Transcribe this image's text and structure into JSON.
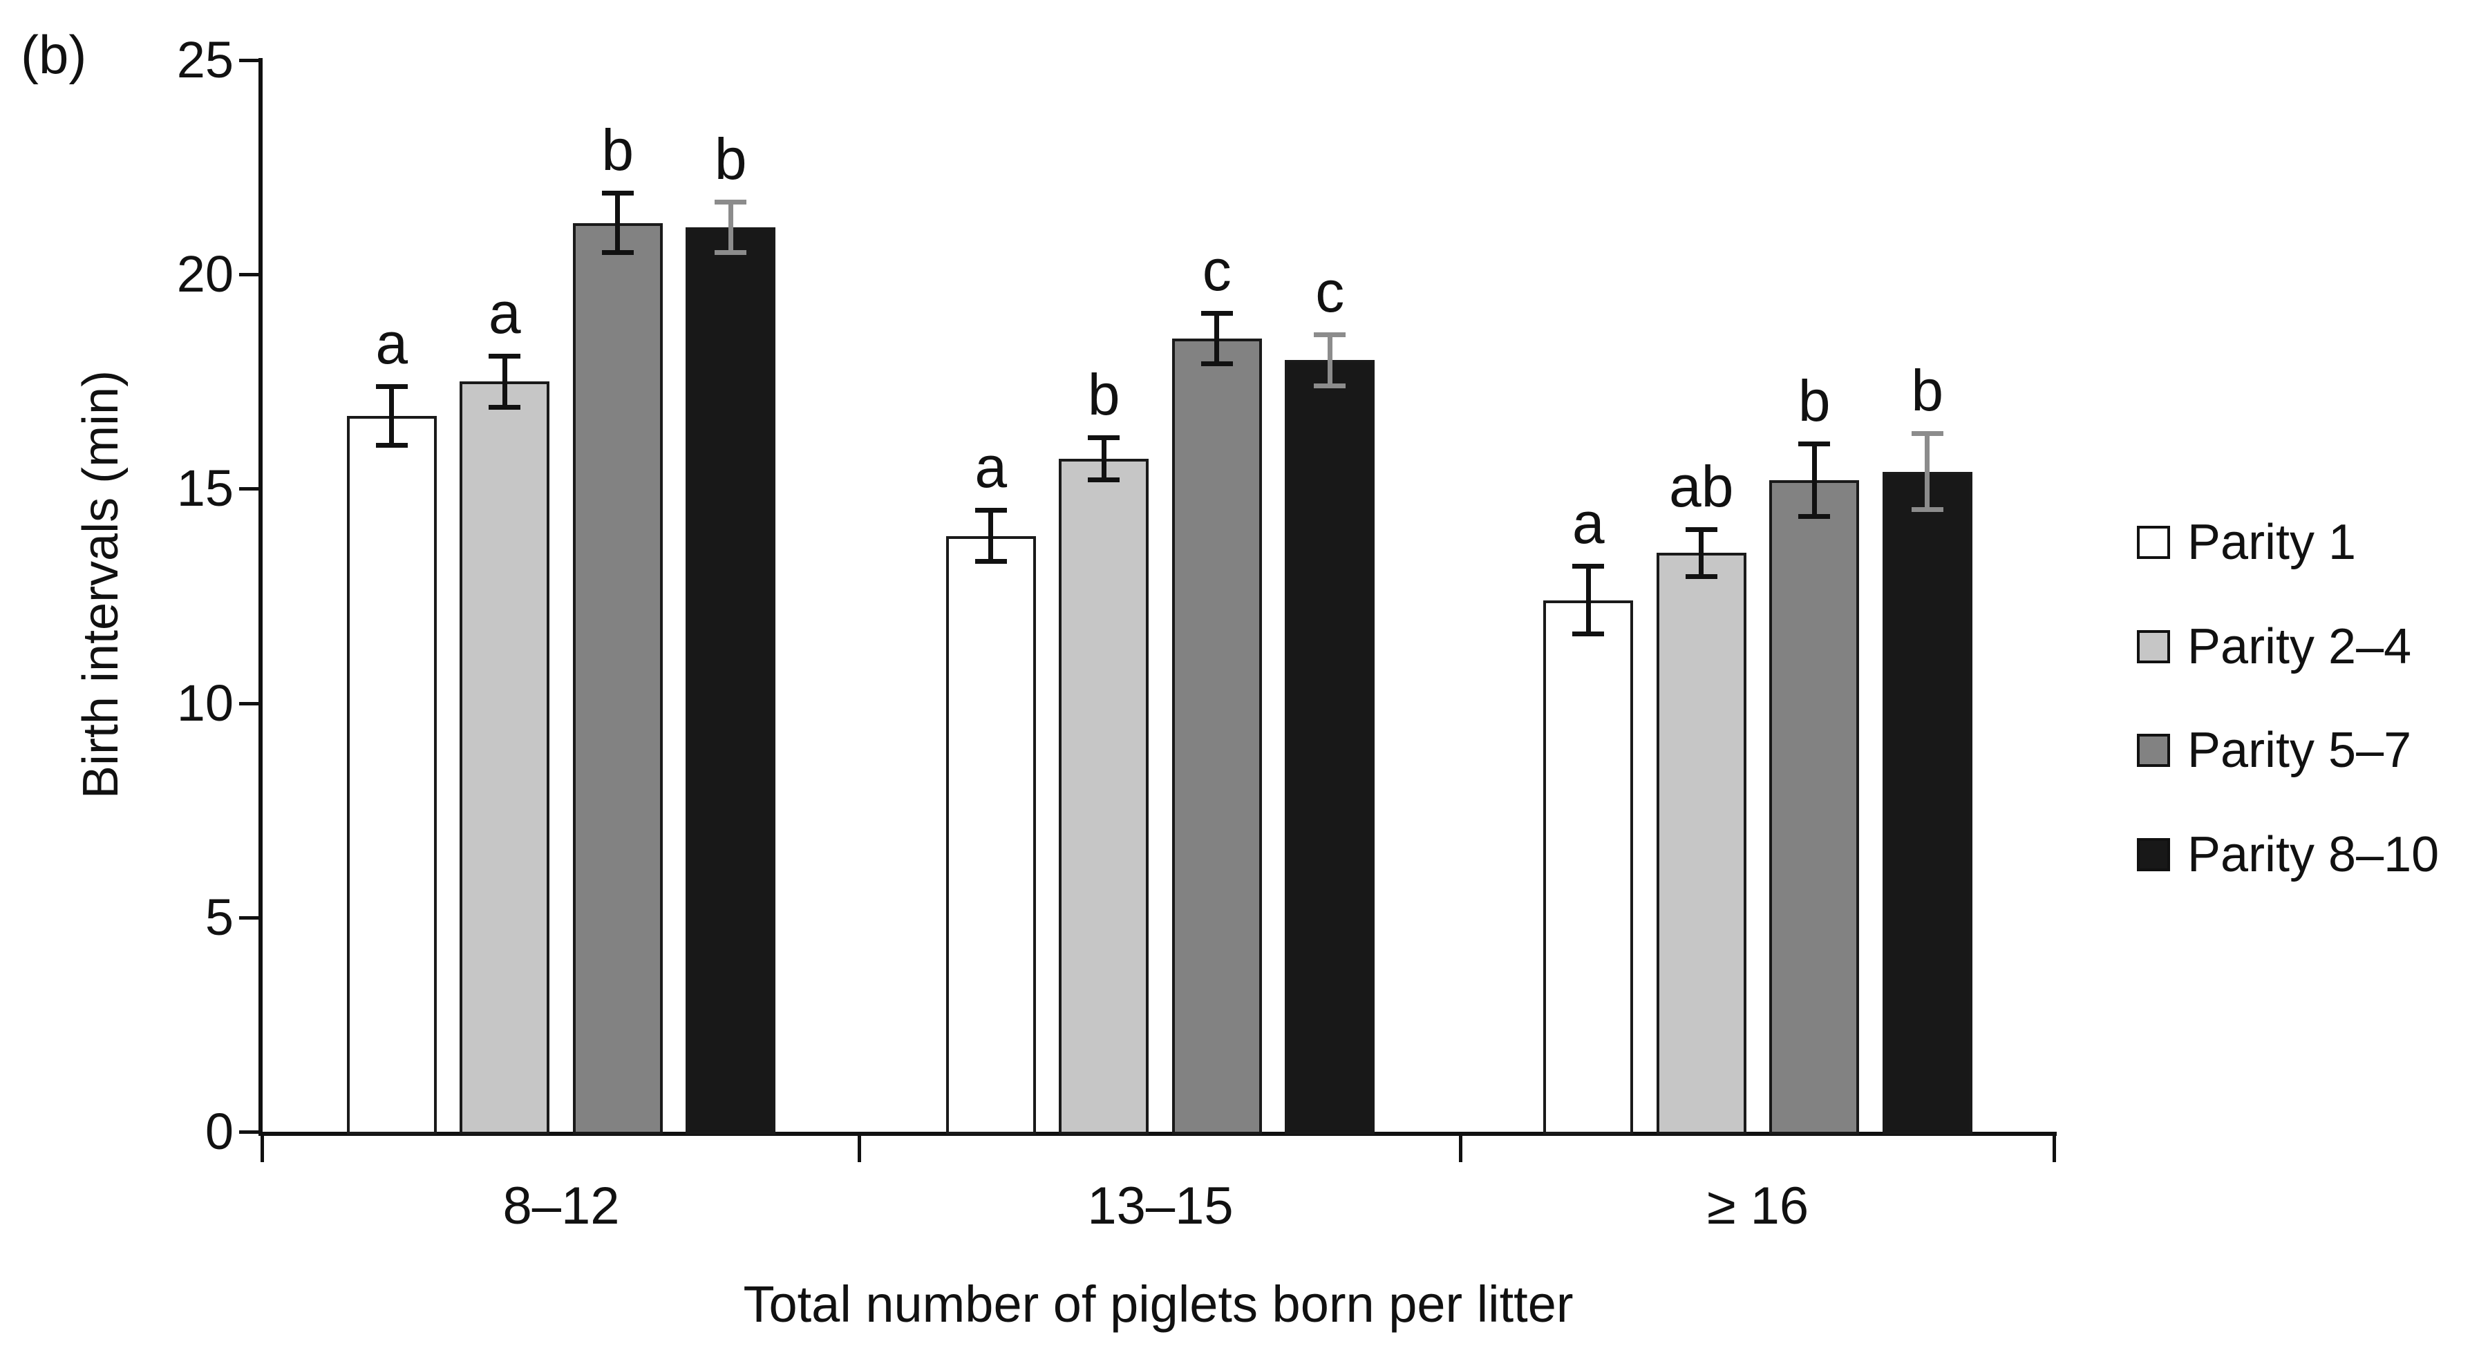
{
  "chart_data": {
    "type": "bar",
    "panel_label": "(b)",
    "title": "",
    "xlabel": "Total number of piglets born per litter",
    "ylabel": "Birth intervals (min)",
    "ylim": [
      0,
      25
    ],
    "yticks": [
      0,
      5,
      10,
      15,
      20,
      25
    ],
    "grid": false,
    "legend_position": "right-middle",
    "categories": [
      "8–12",
      "13–15",
      "≥ 16"
    ],
    "series": [
      {
        "name": "Parity 1",
        "fill": "#ffffff",
        "border": "#1a1a1a",
        "error_color": "#111111",
        "values": [
          16.7,
          13.9,
          12.4
        ],
        "errors": [
          0.7,
          0.6,
          0.8
        ],
        "sig_letters": [
          "a",
          "a",
          "a"
        ]
      },
      {
        "name": "Parity 2–4",
        "fill": "#c6c6c6",
        "border": "#1a1a1a",
        "error_color": "#111111",
        "values": [
          17.5,
          15.7,
          13.5
        ],
        "errors": [
          0.6,
          0.5,
          0.55
        ],
        "sig_letters": [
          "a",
          "b",
          "ab"
        ]
      },
      {
        "name": "Parity 5–7",
        "fill": "#828282",
        "border": "#1a1a1a",
        "error_color": "#111111",
        "values": [
          21.2,
          18.5,
          15.2
        ],
        "errors": [
          0.7,
          0.6,
          0.85
        ],
        "sig_letters": [
          "b",
          "c",
          "b"
        ]
      },
      {
        "name": "Parity 8–10",
        "fill": "#181818",
        "border": "#1a1a1a",
        "error_color": "#8c8c8c",
        "values": [
          21.1,
          18.0,
          15.4
        ],
        "errors": [
          0.6,
          0.6,
          0.9
        ],
        "sig_letters": [
          "b",
          "c",
          "b"
        ]
      }
    ]
  }
}
